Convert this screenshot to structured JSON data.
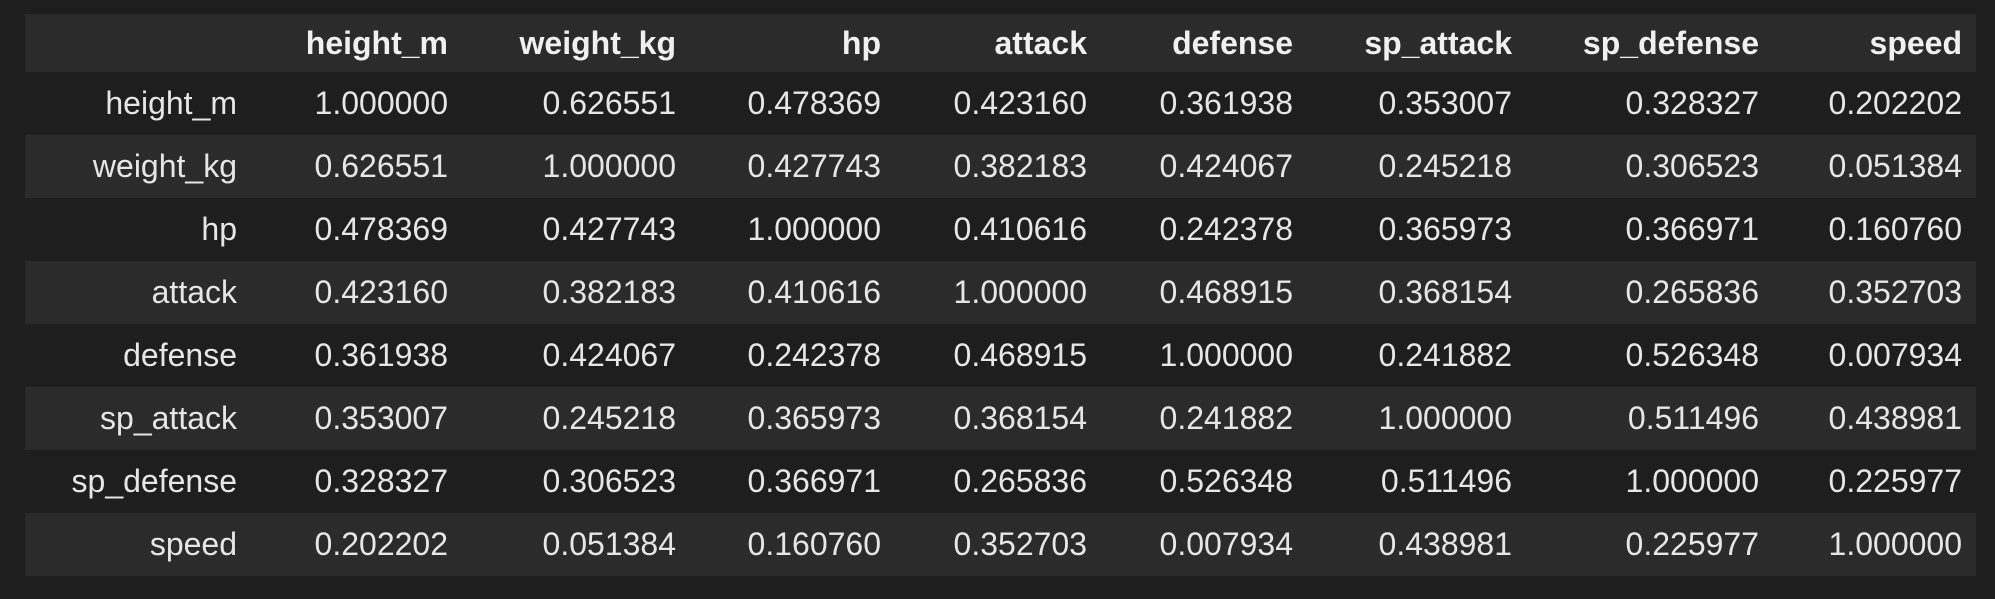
{
  "table": {
    "index_header": "",
    "columns": [
      "height_m",
      "weight_kg",
      "hp",
      "attack",
      "defense",
      "sp_attack",
      "sp_defense",
      "speed"
    ],
    "rows": [
      {
        "label": "height_m",
        "values": [
          "1.000000",
          "0.626551",
          "0.478369",
          "0.423160",
          "0.361938",
          "0.353007",
          "0.328327",
          "0.202202"
        ]
      },
      {
        "label": "weight_kg",
        "values": [
          "0.626551",
          "1.000000",
          "0.427743",
          "0.382183",
          "0.424067",
          "0.245218",
          "0.306523",
          "0.051384"
        ]
      },
      {
        "label": "hp",
        "values": [
          "0.478369",
          "0.427743",
          "1.000000",
          "0.410616",
          "0.242378",
          "0.365973",
          "0.366971",
          "0.160760"
        ]
      },
      {
        "label": "attack",
        "values": [
          "0.423160",
          "0.382183",
          "0.410616",
          "1.000000",
          "0.468915",
          "0.368154",
          "0.265836",
          "0.352703"
        ]
      },
      {
        "label": "defense",
        "values": [
          "0.361938",
          "0.424067",
          "0.242378",
          "0.468915",
          "1.000000",
          "0.241882",
          "0.526348",
          "0.007934"
        ]
      },
      {
        "label": "sp_attack",
        "values": [
          "0.353007",
          "0.245218",
          "0.365973",
          "0.368154",
          "0.241882",
          "1.000000",
          "0.511496",
          "0.438981"
        ]
      },
      {
        "label": "sp_defense",
        "values": [
          "0.328327",
          "0.306523",
          "0.366971",
          "0.265836",
          "0.526348",
          "0.511496",
          "1.000000",
          "0.225977"
        ]
      },
      {
        "label": "speed",
        "values": [
          "0.202202",
          "0.051384",
          "0.160760",
          "0.352703",
          "0.007934",
          "0.438981",
          "0.225977",
          "1.000000"
        ]
      }
    ]
  }
}
